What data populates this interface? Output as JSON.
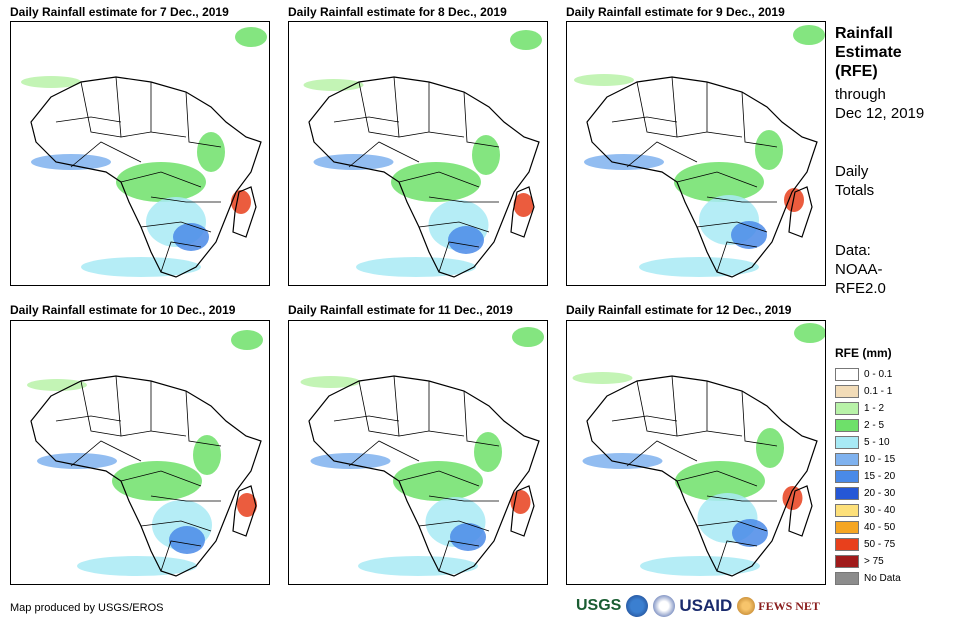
{
  "panels": [
    {
      "title": "Daily Rainfall estimate for 7 Dec., 2019"
    },
    {
      "title": "Daily Rainfall estimate for 8 Dec., 2019"
    },
    {
      "title": "Daily Rainfall estimate for 9 Dec., 2019"
    },
    {
      "title": "Daily Rainfall estimate for 10 Dec., 2019"
    },
    {
      "title": "Daily Rainfall estimate for 11 Dec., 2019"
    },
    {
      "title": "Daily Rainfall estimate for 12 Dec., 2019"
    }
  ],
  "side": {
    "title_line1": "Rainfall",
    "title_line2": "Estimate",
    "title_line3": "(RFE)",
    "through_line1": "through",
    "through_line2": "Dec 12, 2019",
    "daily_line1": "Daily",
    "daily_line2": "Totals",
    "data_line1": "Data:",
    "data_line2": "NOAA-",
    "data_line3": "RFE2.0"
  },
  "legend": {
    "title": "RFE (mm)",
    "items": [
      {
        "label": "0 - 0.1",
        "color": "#ffffff"
      },
      {
        "label": "0.1 - 1",
        "color": "#f2dcb8"
      },
      {
        "label": "1 - 2",
        "color": "#b8f2a8"
      },
      {
        "label": "2 - 5",
        "color": "#6ee06a"
      },
      {
        "label": "5 - 10",
        "color": "#a8eaf5"
      },
      {
        "label": "10 - 15",
        "color": "#7fb2ef"
      },
      {
        "label": "15 - 20",
        "color": "#4a8ae8"
      },
      {
        "label": "20 - 30",
        "color": "#2557d6"
      },
      {
        "label": "30 - 40",
        "color": "#fde07a"
      },
      {
        "label": "40 - 50",
        "color": "#f5a623"
      },
      {
        "label": "50 - 75",
        "color": "#e8401c"
      },
      {
        "label": "> 75",
        "color": "#a01b1b"
      },
      {
        "label": "No Data",
        "color": "#8c8c8c"
      }
    ]
  },
  "credit": "Map produced by USGS/EROS",
  "logos": {
    "usgs": "USGS",
    "usaid": "USAID",
    "fews": "FEWS NET"
  }
}
